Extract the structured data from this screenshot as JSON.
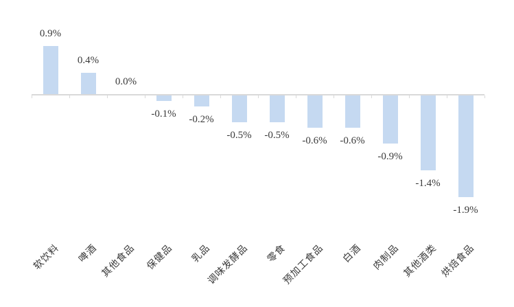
{
  "chart_data": {
    "type": "bar",
    "title": "",
    "xlabel": "",
    "ylabel": "",
    "categories": [
      "软饮料",
      "啤酒",
      "其他食品",
      "保健品",
      "乳品",
      "调味发酵品",
      "零食",
      "预加工食品",
      "白酒",
      "肉制品",
      "其他酒类",
      "烘焙食品"
    ],
    "values": [
      0.9,
      0.4,
      0.0,
      -0.1,
      -0.2,
      -0.5,
      -0.5,
      -0.6,
      -0.6,
      -0.9,
      -1.4,
      -1.9
    ],
    "value_labels": [
      "0.9%",
      "0.4%",
      "0.0%",
      "-0.1%",
      "-0.2%",
      "-0.5%",
      "-0.5%",
      "-0.6%",
      "-0.6%",
      "-0.9%",
      "-1.4%",
      "-1.9%"
    ],
    "ylim": [
      -2.3,
      1.5
    ],
    "grid": false,
    "legend": "none",
    "category_label_rotation_deg": 45,
    "colors": {
      "bar_fill": "#C5D9F1",
      "axis_line": "#D9D9D9",
      "label_text": "#3A3A3A"
    }
  }
}
